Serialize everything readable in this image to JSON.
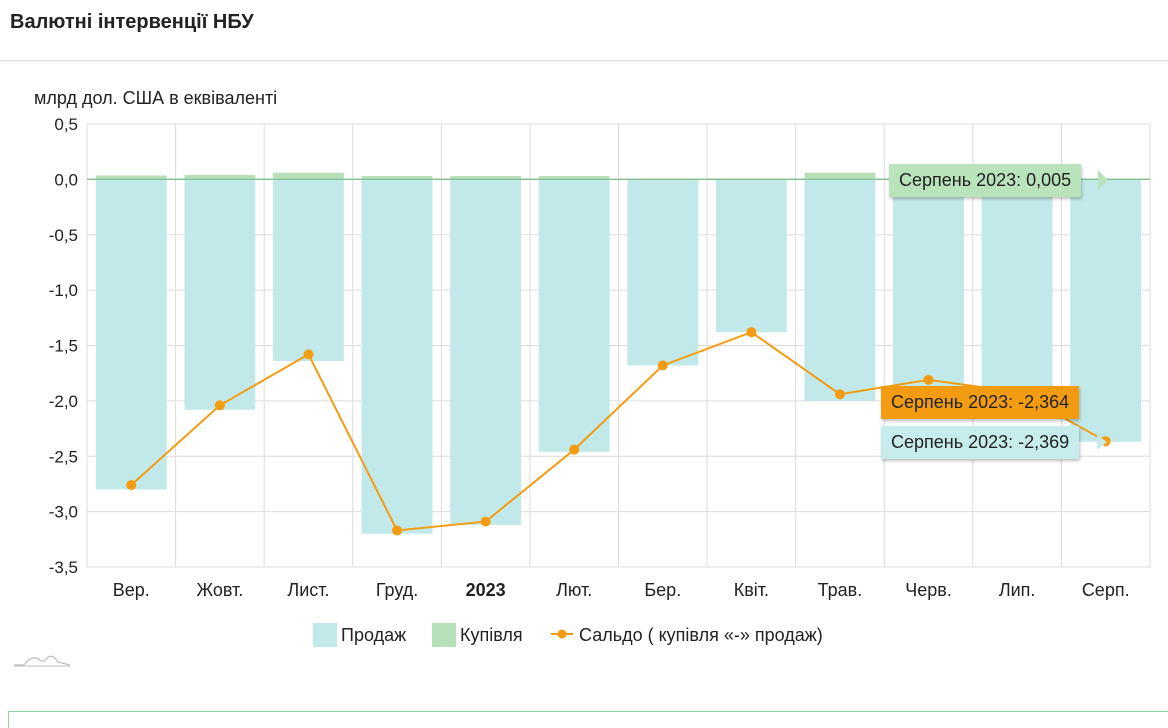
{
  "page": {
    "title": "Валютні інтервенції НБУ"
  },
  "chart_data": {
    "type": "bar",
    "ylabel": "млрд дол. США в еквіваленті",
    "ylim": [
      -3.5,
      0.5
    ],
    "yticks": [
      "0,5",
      "0,0",
      "-0,5",
      "-1,0",
      "-1,5",
      "-2,0",
      "-2,5",
      "-3,0",
      "-3,5"
    ],
    "ytick_values": [
      0.5,
      0.0,
      -0.5,
      -1.0,
      -1.5,
      -2.0,
      -2.5,
      -3.0,
      -3.5
    ],
    "categories": [
      "Вер.",
      "Жовт.",
      "Лист.",
      "Груд.",
      "2023",
      "Лют.",
      "Бер.",
      "Квіт.",
      "Трав.",
      "Черв.",
      "Лип.",
      "Серп."
    ],
    "bold_categories": [
      "2023"
    ],
    "grid": true,
    "legend_position": "bottom",
    "series": [
      {
        "name": "Продаж",
        "type": "bar",
        "color": "#c2e9e9",
        "values": [
          -2.8,
          -2.08,
          -1.64,
          -3.2,
          -3.12,
          -2.46,
          -1.68,
          -1.38,
          -2.0,
          -2.0,
          -2.0,
          -2.369
        ]
      },
      {
        "name": "Купівля",
        "type": "bar",
        "color": "#b7e0b9",
        "values": [
          0.035,
          0.04,
          0.06,
          0.03,
          0.03,
          0.03,
          0.0,
          0.0,
          0.06,
          0.0,
          0.0,
          0.005
        ]
      },
      {
        "name": "Сальдо ( купівля «-» продаж)",
        "type": "line",
        "color": "#f39c12",
        "values": [
          -2.76,
          -2.04,
          -1.58,
          -3.17,
          -3.09,
          -2.44,
          -1.68,
          -1.38,
          -1.94,
          -1.81,
          -1.92,
          -2.364
        ]
      }
    ]
  },
  "tooltips": {
    "purchase": "Серпень 2023: 0,005",
    "balance": "Серпень 2023: -2,364",
    "sales": "Серпень 2023: -2,369"
  }
}
